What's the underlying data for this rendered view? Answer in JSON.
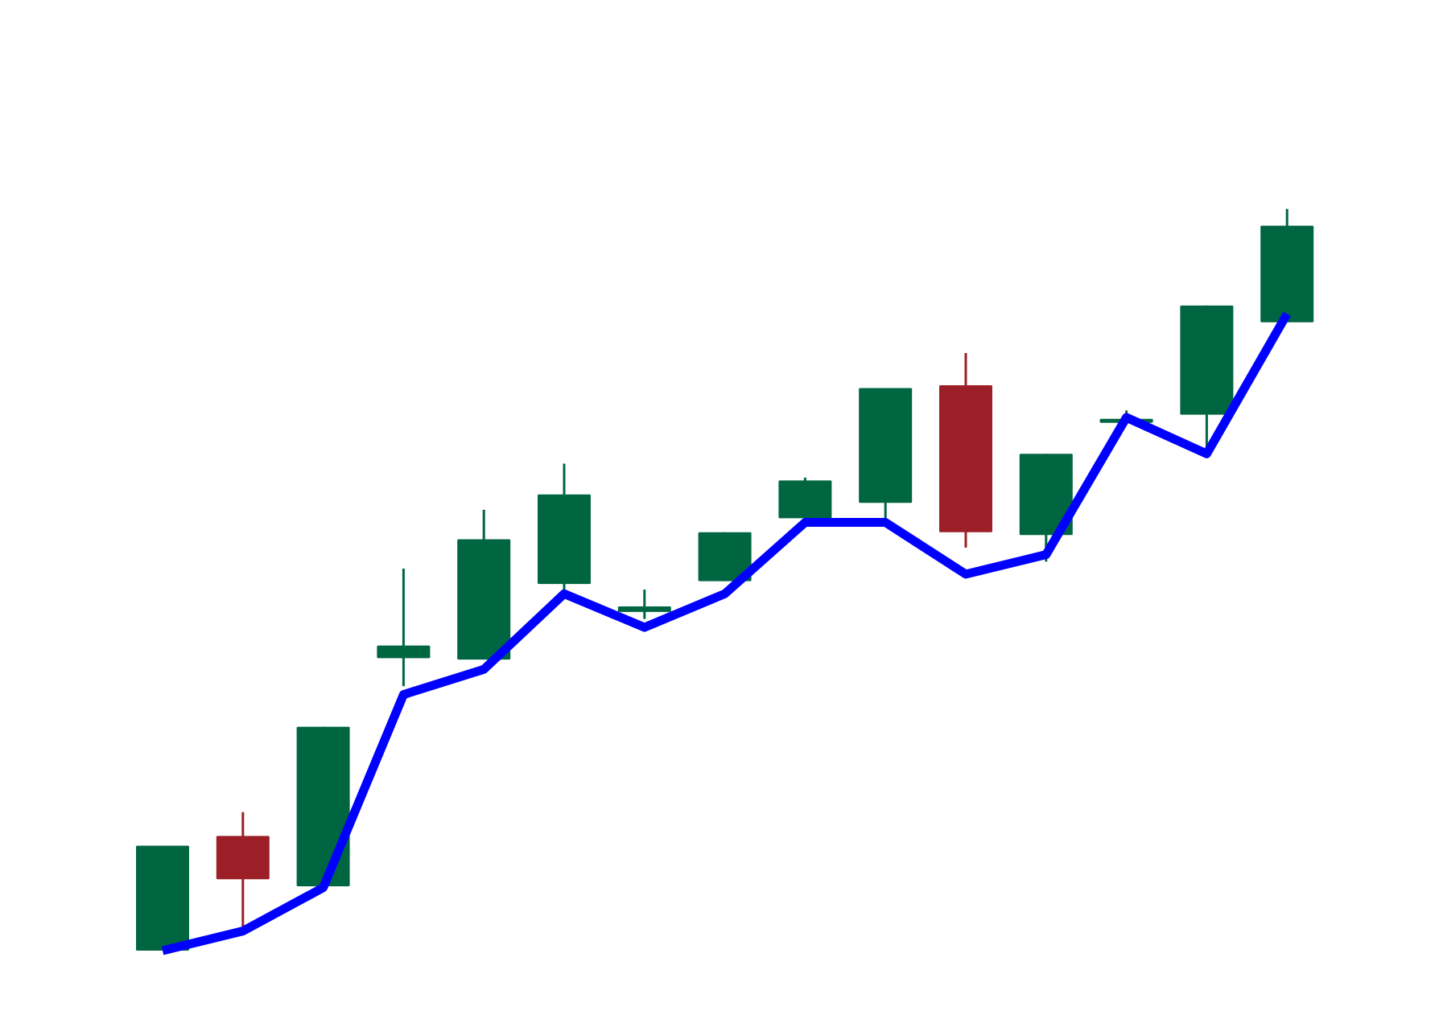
{
  "chart_data": {
    "type": "candlestick",
    "title": "",
    "xlabel": "",
    "ylabel": "",
    "grid": false,
    "axes_visible": false,
    "legend": "none",
    "ylim": [
      0,
      100
    ],
    "colors": {
      "up": "#006641",
      "down": "#9c1f27",
      "line": "#0000ff",
      "background": "#ffffff"
    },
    "candles": [
      {
        "open": 0.0,
        "high": 15.0,
        "low": 0.0,
        "close": 15.0
      },
      {
        "open": 16.4,
        "high": 19.8,
        "low": 3.4,
        "close": 10.2
      },
      {
        "open": 9.2,
        "high": 32.0,
        "low": 9.2,
        "close": 32.0
      },
      {
        "open": 41.8,
        "high": 54.6,
        "low": 37.8,
        "close": 43.6
      },
      {
        "open": 41.6,
        "high": 63.0,
        "low": 41.6,
        "close": 58.8
      },
      {
        "open": 52.4,
        "high": 69.6,
        "low": 50.4,
        "close": 65.2
      },
      {
        "open": 48.4,
        "high": 51.6,
        "low": 47.4,
        "close": 49.2
      },
      {
        "open": 52.8,
        "high": 59.8,
        "low": 52.8,
        "close": 59.8
      },
      {
        "open": 61.8,
        "high": 67.6,
        "low": 61.8,
        "close": 67.2
      },
      {
        "open": 64.0,
        "high": 80.4,
        "low": 61.6,
        "close": 80.4
      },
      {
        "open": 80.8,
        "high": 85.4,
        "low": 57.6,
        "close": 59.8
      },
      {
        "open": 59.4,
        "high": 71.0,
        "low": 55.6,
        "close": 71.0
      },
      {
        "open": 75.6,
        "high": 77.2,
        "low": 75.4,
        "close": 76.0
      },
      {
        "open": 76.6,
        "high": 92.2,
        "low": 71.2,
        "close": 92.2
      },
      {
        "open": 89.8,
        "high": 106.0,
        "low": 89.8,
        "close": 103.6
      }
    ],
    "line_series": {
      "values": [
        0.0,
        2.8,
        9.0,
        36.6,
        40.2,
        51.0,
        46.2,
        51.0,
        61.2,
        61.2,
        53.8,
        56.6,
        76.2,
        71.0,
        91.0
      ]
    }
  }
}
